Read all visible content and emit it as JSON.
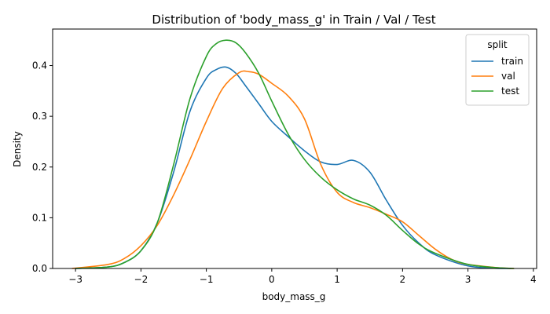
{
  "chart_data": {
    "type": "line",
    "title": "Distribution of 'body_mass_g' in Train / Val / Test",
    "xlabel": "body_mass_g",
    "ylabel": "Density",
    "xlim": [
      -3.35,
      4.05
    ],
    "ylim": [
      0,
      0.472
    ],
    "xticks": [
      -3,
      -2,
      -1,
      0,
      1,
      2,
      3,
      4
    ],
    "yticks": [
      0.0,
      0.1,
      0.2,
      0.3,
      0.4
    ],
    "ytick_labels": [
      "0.0",
      "0.1",
      "0.2",
      "0.3",
      "0.4"
    ],
    "grid": false,
    "legend": {
      "title": "split",
      "placement": "top-right"
    },
    "series": [
      {
        "name": "train",
        "color": "#1f77b4",
        "x": [
          -3.0,
          -2.5,
          -2.25,
          -2.0,
          -1.75,
          -1.5,
          -1.25,
          -1.0,
          -0.85,
          -0.7,
          -0.55,
          -0.4,
          -0.2,
          0.0,
          0.25,
          0.5,
          0.75,
          1.0,
          1.25,
          1.5,
          1.75,
          2.0,
          2.25,
          2.5,
          3.0,
          3.5,
          3.65
        ],
        "y": [
          0.0,
          0.003,
          0.012,
          0.035,
          0.09,
          0.19,
          0.31,
          0.375,
          0.392,
          0.397,
          0.385,
          0.36,
          0.325,
          0.29,
          0.26,
          0.232,
          0.21,
          0.205,
          0.213,
          0.19,
          0.135,
          0.085,
          0.05,
          0.027,
          0.005,
          0.0,
          0.0
        ]
      },
      {
        "name": "val",
        "color": "#ff7f0e",
        "x": [
          -3.05,
          -2.5,
          -2.25,
          -2.0,
          -1.75,
          -1.5,
          -1.25,
          -1.0,
          -0.75,
          -0.5,
          -0.35,
          -0.2,
          0.0,
          0.25,
          0.5,
          0.75,
          1.0,
          1.25,
          1.5,
          1.75,
          2.0,
          2.25,
          2.5,
          2.75,
          3.0,
          3.5,
          3.7
        ],
        "y": [
          0.0,
          0.008,
          0.02,
          0.045,
          0.085,
          0.145,
          0.215,
          0.29,
          0.355,
          0.386,
          0.388,
          0.383,
          0.365,
          0.34,
          0.295,
          0.205,
          0.15,
          0.13,
          0.12,
          0.107,
          0.092,
          0.065,
          0.038,
          0.018,
          0.008,
          0.001,
          0.0
        ]
      },
      {
        "name": "test",
        "color": "#2ca02c",
        "x": [
          -3.0,
          -2.5,
          -2.25,
          -2.0,
          -1.75,
          -1.5,
          -1.25,
          -1.0,
          -0.85,
          -0.7,
          -0.55,
          -0.4,
          -0.2,
          0.0,
          0.25,
          0.5,
          0.75,
          1.0,
          1.25,
          1.5,
          1.75,
          2.0,
          2.25,
          2.5,
          3.0,
          3.5,
          3.7
        ],
        "y": [
          0.0,
          0.003,
          0.012,
          0.035,
          0.09,
          0.205,
          0.335,
          0.418,
          0.443,
          0.45,
          0.445,
          0.425,
          0.385,
          0.33,
          0.265,
          0.215,
          0.18,
          0.155,
          0.137,
          0.125,
          0.105,
          0.075,
          0.048,
          0.03,
          0.008,
          0.001,
          0.0
        ]
      }
    ]
  }
}
